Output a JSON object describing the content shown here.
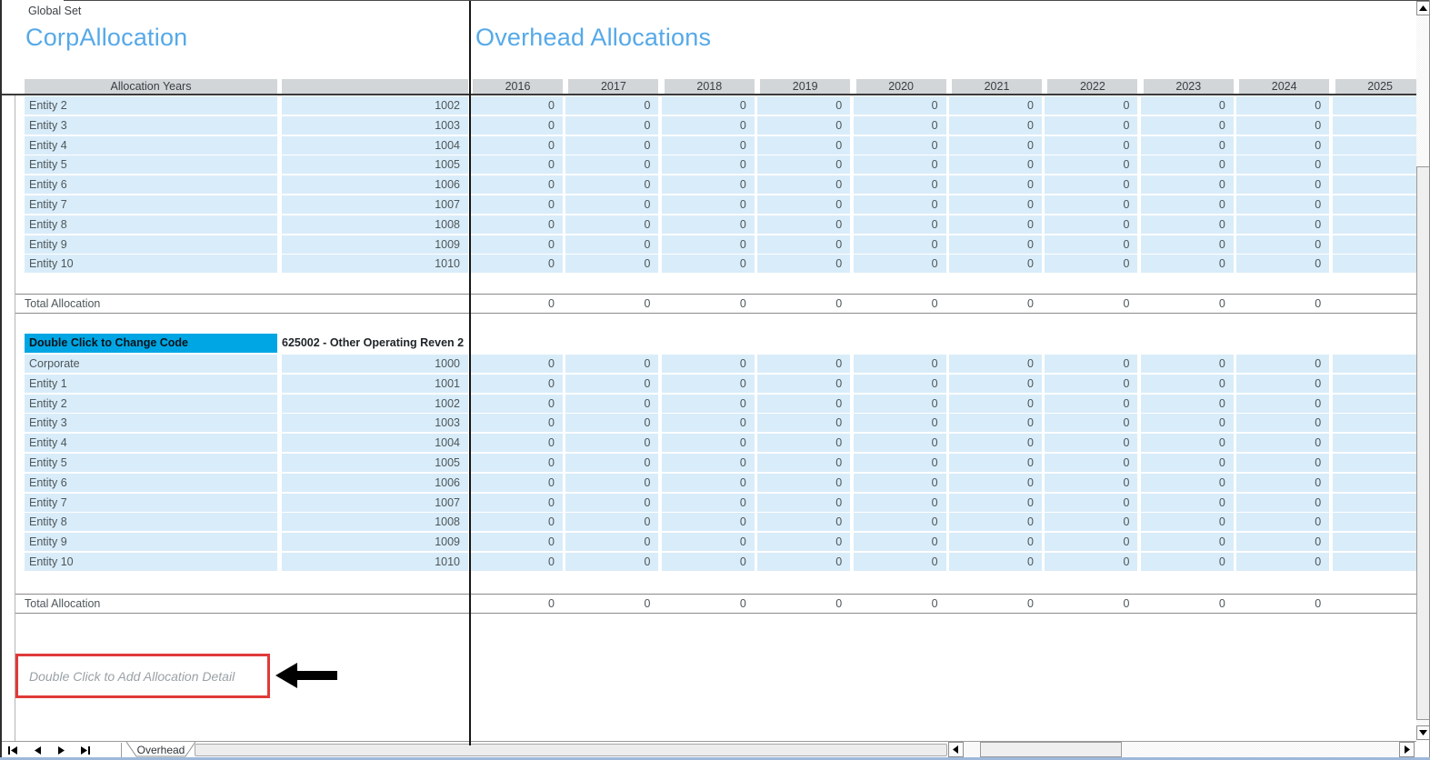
{
  "window": {
    "top_left_label": "Global Set",
    "left_title": "CorpAllocation",
    "right_title": "Overhead Allocations"
  },
  "table": {
    "left_header": "Allocation Years",
    "years": [
      "2016",
      "2017",
      "2018",
      "2019",
      "2020",
      "2021",
      "2022",
      "2023",
      "2024",
      "2025"
    ],
    "zero_value": "0",
    "years_with_visible_values": [
      "2016",
      "2017",
      "2018",
      "2019",
      "2020",
      "2021",
      "2022",
      "2023",
      "2024"
    ],
    "section1": {
      "rows": [
        {
          "label": "Entity 2",
          "code": "1002"
        },
        {
          "label": "Entity 3",
          "code": "1003"
        },
        {
          "label": "Entity 4",
          "code": "1004"
        },
        {
          "label": "Entity 5",
          "code": "1005"
        },
        {
          "label": "Entity 6",
          "code": "1006"
        },
        {
          "label": "Entity 7",
          "code": "1007"
        },
        {
          "label": "Entity 8",
          "code": "1008"
        },
        {
          "label": "Entity 9",
          "code": "1009"
        },
        {
          "label": "Entity 10",
          "code": "1010"
        }
      ],
      "total_label": "Total Allocation"
    },
    "section2": {
      "change_code_label": "Double Click to Change Code",
      "account": "625002 - Other Operating Reven 2",
      "rows": [
        {
          "label": "Corporate",
          "code": "1000"
        },
        {
          "label": "Entity 1",
          "code": "1001"
        },
        {
          "label": "Entity 2",
          "code": "1002"
        },
        {
          "label": "Entity 3",
          "code": "1003"
        },
        {
          "label": "Entity 4",
          "code": "1004"
        },
        {
          "label": "Entity 5",
          "code": "1005"
        },
        {
          "label": "Entity 6",
          "code": "1006"
        },
        {
          "label": "Entity 7",
          "code": "1007"
        },
        {
          "label": "Entity 8",
          "code": "1008"
        },
        {
          "label": "Entity 9",
          "code": "1009"
        },
        {
          "label": "Entity 10",
          "code": "1010"
        }
      ],
      "total_label": "Total Allocation"
    }
  },
  "annotations": {
    "add_detail_label": "Double Click to Add Allocation Detail",
    "arrow_icon": "left-arrow"
  },
  "footer": {
    "sheet_tabs": [
      "Overhead"
    ],
    "nav_icons": [
      "first-sheet",
      "previous-sheet",
      "next-sheet",
      "last-sheet"
    ]
  },
  "colors": {
    "title_blue": "#56A9E8",
    "row_blue": "#D9ECF9",
    "header_gray": "#D2D6D9",
    "highlight_cyan": "#00A6E4",
    "annotation_red": "#E03A3A"
  }
}
